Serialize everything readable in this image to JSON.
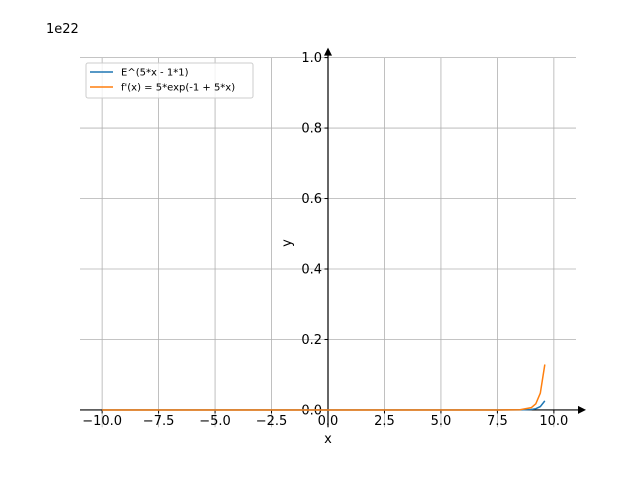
{
  "chart_data": {
    "type": "line",
    "y_offset_label": "1e22",
    "xlabel": "x",
    "ylabel": "y",
    "x": [
      -10,
      0,
      5,
      7.5,
      8,
      8.5,
      9,
      9.2,
      9.4,
      9.6
    ],
    "series": [
      {
        "name": "E^(5*x - 1*1)",
        "color": "#1f77b4",
        "values": [
          0,
          0,
          0,
          0,
          8.7e-06,
          0.000105,
          0.00129,
          0.00349,
          0.0095,
          0.0258
        ]
      },
      {
        "name": "f'(x) = 5*exp(-1 + 5*x)",
        "color": "#ff7f0e",
        "values": [
          0,
          0,
          0,
          0,
          4.33e-05,
          0.000527,
          0.00643,
          0.01747,
          0.0475,
          0.129
        ]
      }
    ],
    "xlim": [
      -10.98,
      10.98
    ],
    "ylim": [
      -0.049,
      1.0
    ],
    "xticks": [
      {
        "value": -10,
        "label": "−10.0"
      },
      {
        "value": -7.5,
        "label": "−7.5"
      },
      {
        "value": -5,
        "label": "−5.0"
      },
      {
        "value": -2.5,
        "label": "−2.5"
      },
      {
        "value": 0,
        "label": "0.0"
      },
      2.5,
      {
        "value": 5,
        "label": "5.0"
      },
      7.5,
      {
        "value": 10,
        "label": "10.0"
      }
    ],
    "yticks": [
      {
        "value": 0,
        "label": "0.0"
      },
      0.2,
      0.4,
      0.6,
      0.8,
      {
        "value": 1,
        "label": "1.0"
      }
    ],
    "grid": true,
    "legend": "upper left"
  }
}
